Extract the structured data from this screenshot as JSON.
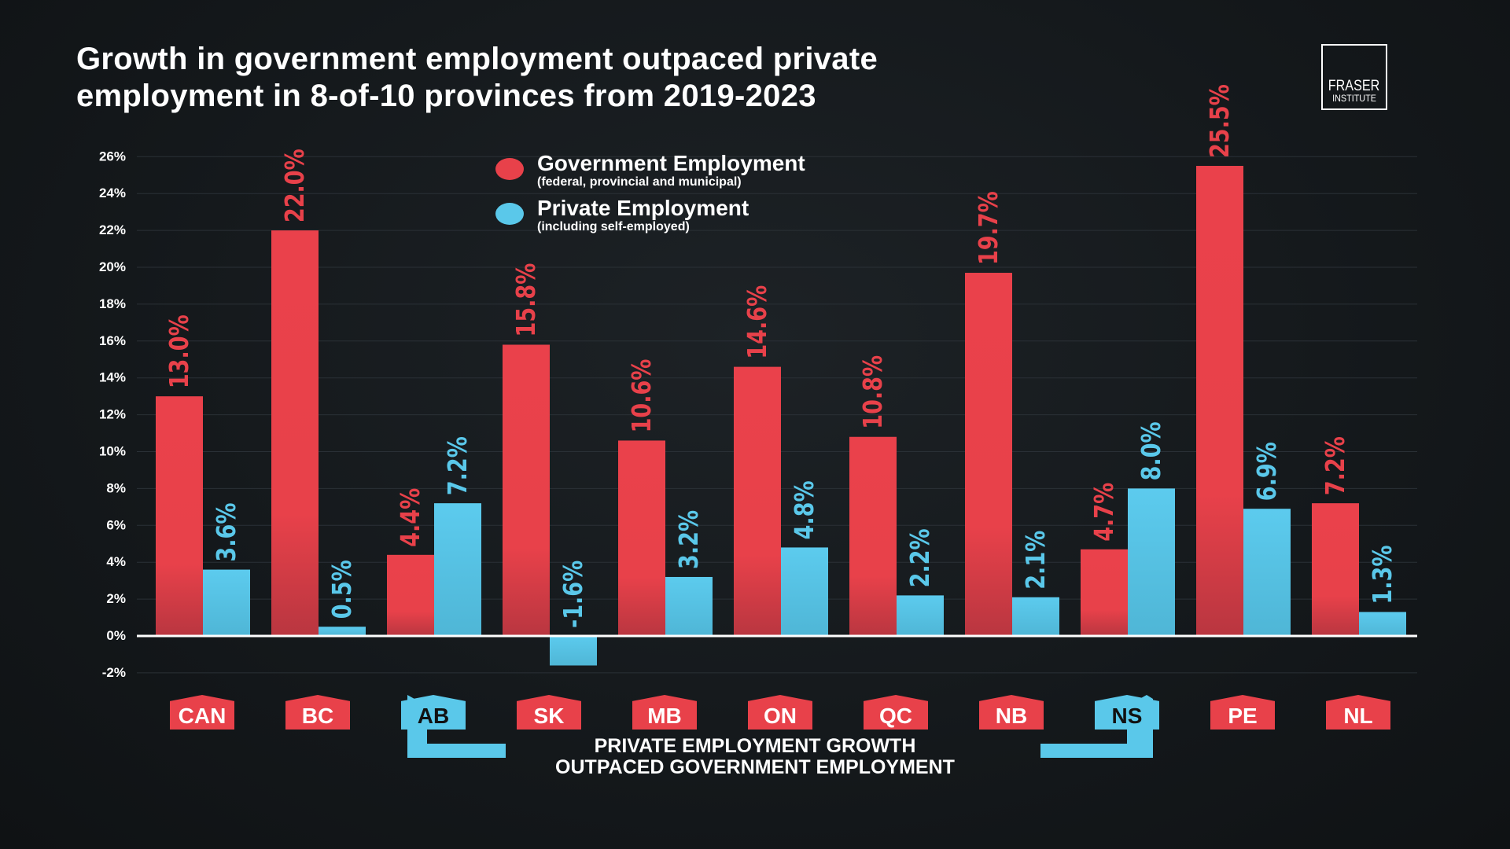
{
  "title_line1": "Growth in government employment outpaced private",
  "title_line2": "employment in 8-of-10 provinces from 2019-2023",
  "logo": {
    "line1": "FRASER",
    "line2": "INSTITUTE"
  },
  "chart_data": {
    "type": "bar",
    "categories": [
      "CAN",
      "BC",
      "AB",
      "SK",
      "MB",
      "ON",
      "QC",
      "NB",
      "NS",
      "PE",
      "NL"
    ],
    "series": [
      {
        "name": "Government Employment",
        "note": "(federal, provincial and municipal)",
        "color": "#e8414a",
        "values": [
          13.0,
          22.0,
          4.4,
          15.8,
          10.6,
          14.6,
          10.8,
          19.7,
          4.7,
          25.5,
          7.2
        ]
      },
      {
        "name": "Private Employment",
        "note": "(including self-employed)",
        "color": "#5ac8ea",
        "values": [
          3.6,
          0.5,
          7.2,
          -1.6,
          3.2,
          4.8,
          2.2,
          2.1,
          8.0,
          6.9,
          1.3
        ]
      }
    ],
    "data_labels": [
      [
        "13.0%",
        "22.0%",
        "4.4%",
        "15.8%",
        "10.6%",
        "14.6%",
        "10.8%",
        "19.7%",
        "4.7%",
        "25.5%",
        "7.2%"
      ],
      [
        "3.6%",
        "0.5%",
        "7.2%",
        "-1.6%",
        "3.2%",
        "4.8%",
        "2.2%",
        "2.1%",
        "8.0%",
        "6.9%",
        "1.3%"
      ]
    ],
    "yticks": [
      "-2%",
      "0%",
      "2%",
      "4%",
      "6%",
      "8%",
      "10%",
      "12%",
      "14%",
      "16%",
      "18%",
      "20%",
      "22%",
      "24%",
      "26%"
    ],
    "ylim": [
      -2,
      26
    ],
    "grid": true,
    "legend": "top-center",
    "highlighted_categories": [
      "AB",
      "NS"
    ],
    "callout": [
      "PRIVATE EMPLOYMENT GROWTH",
      "OUTPACED GOVERNMENT EMPLOYMENT"
    ]
  }
}
